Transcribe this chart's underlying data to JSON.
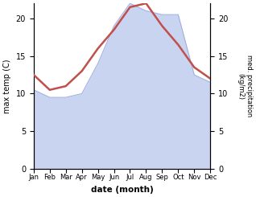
{
  "months": [
    "Jan",
    "Feb",
    "Mar",
    "Apr",
    "May",
    "Jun",
    "Jul",
    "Aug",
    "Sep",
    "Oct",
    "Nov",
    "Dec"
  ],
  "month_positions": [
    0,
    1,
    2,
    3,
    4,
    5,
    6,
    7,
    8,
    9,
    10,
    11
  ],
  "temp": [
    12.5,
    10.5,
    11.0,
    13.0,
    16.0,
    18.5,
    21.5,
    22.0,
    19.0,
    16.5,
    13.5,
    12.0
  ],
  "precip": [
    10.5,
    9.5,
    9.5,
    10.0,
    14.0,
    19.0,
    22.0,
    21.0,
    20.5,
    20.5,
    12.5,
    11.5
  ],
  "temp_color": "#c0504d",
  "precip_fill_color": "#c8d4f0",
  "precip_line_color": "#a0b0e0",
  "ylabel_left": "max temp (C)",
  "ylabel_right": "med. precipitation\n(kg/m2)",
  "xlabel": "date (month)",
  "ylim_left": [
    0,
    22
  ],
  "ylim_right": [
    0,
    22
  ],
  "yticks_left": [
    0,
    5,
    10,
    15,
    20
  ],
  "yticks_right": [
    0,
    5,
    10,
    15,
    20
  ],
  "bg_color": "#ffffff",
  "temp_linewidth": 1.8,
  "figsize": [
    3.18,
    2.45
  ],
  "dpi": 100
}
